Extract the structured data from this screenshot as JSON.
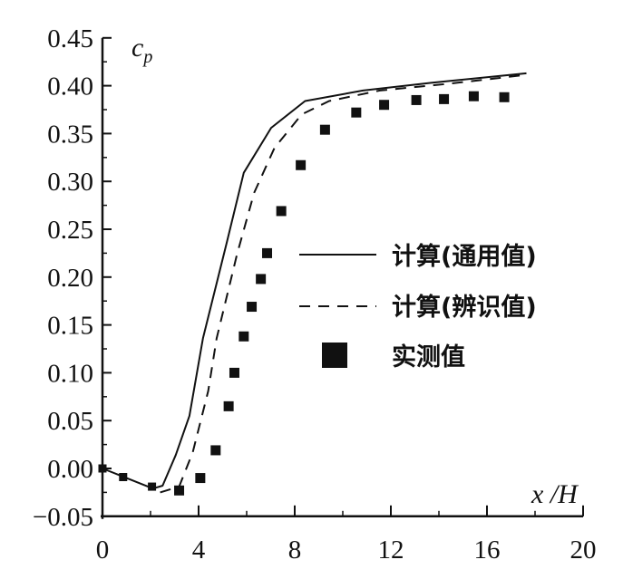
{
  "chart_data": {
    "type": "line",
    "title": "",
    "xlabel": "x /H",
    "ylabel": "c_p",
    "ylabel_main": "c",
    "ylabel_sub": "p",
    "xlim": [
      0,
      20
    ],
    "ylim": [
      -0.05,
      0.45
    ],
    "x_ticks": [
      0,
      4,
      8,
      12,
      16,
      20
    ],
    "x_tick_labels": [
      "0",
      "4",
      "8",
      "12",
      "16",
      "20"
    ],
    "y_ticks": [
      -0.05,
      0,
      0.05,
      0.1,
      0.15,
      0.2,
      0.25,
      0.3,
      0.35,
      0.4,
      0.45
    ],
    "y_tick_labels": [
      "−0.05",
      "0.00",
      "0.05",
      "0.10",
      "0.15",
      "0.20",
      "0.25",
      "0.30",
      "0.35",
      "0.40",
      "0.45"
    ],
    "grid": false,
    "legend_position": "right",
    "series": [
      {
        "name": "计算(通用值)",
        "style": "solid",
        "color": "#111111",
        "x": [
          0,
          0.8,
          2.1,
          2.5,
          3.05,
          3.62,
          4.18,
          5.18,
          5.88,
          7.02,
          8.43,
          10.84,
          13.68,
          17.64
        ],
        "y": [
          0,
          -0.008,
          -0.021,
          -0.018,
          0.014,
          0.055,
          0.136,
          0.237,
          0.309,
          0.356,
          0.384,
          0.395,
          0.403,
          0.413
        ]
      },
      {
        "name": "计算(辨识值)",
        "style": "dashed",
        "color": "#111111",
        "x": [
          2.4,
          3.19,
          3.76,
          4.4,
          4.75,
          5.6,
          6.31,
          7.16,
          8.29,
          9.43,
          11.54,
          14.38,
          17.5
        ],
        "y": [
          -0.025,
          -0.019,
          0.017,
          0.081,
          0.136,
          0.224,
          0.288,
          0.335,
          0.37,
          0.384,
          0.395,
          0.402,
          0.411
        ]
      },
      {
        "name": "实测值",
        "style": "markers",
        "marker": "square",
        "color": "#111111",
        "x": [
          0,
          0.86,
          2.06,
          3.19,
          4.07,
          4.71,
          5.25,
          5.49,
          5.88,
          6.21,
          6.59,
          6.85,
          7.44,
          8.25,
          9.26,
          10.56,
          11.72,
          13.06,
          14.21,
          15.45,
          16.72
        ],
        "y": [
          0,
          -0.009,
          -0.019,
          -0.023,
          -0.01,
          0.019,
          0.065,
          0.1,
          0.138,
          0.169,
          0.198,
          0.225,
          0.269,
          0.317,
          0.354,
          0.372,
          0.38,
          0.385,
          0.386,
          0.389,
          0.388
        ]
      }
    ]
  }
}
